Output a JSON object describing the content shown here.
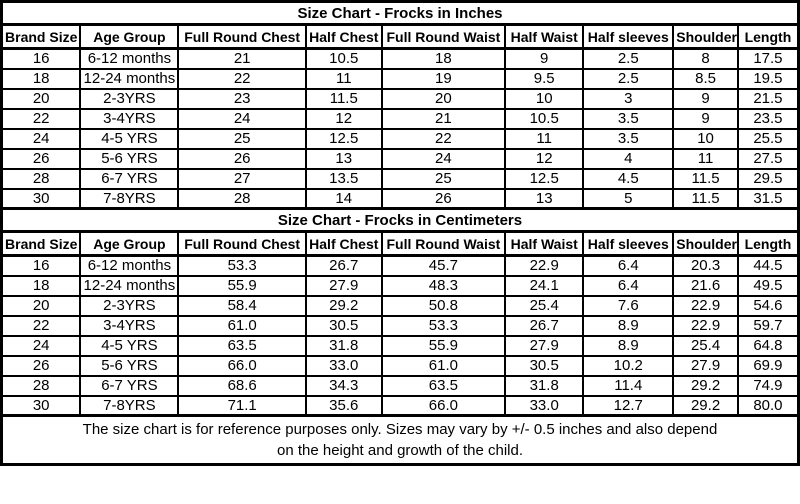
{
  "columns": [
    "Brand Size",
    "Age Group",
    "Full Round Chest",
    "Half Chest",
    "Full Round Waist",
    "Half Waist",
    "Half sleeves",
    "Shoulder",
    "Length"
  ],
  "footer": {
    "line1": "The size chart is for reference purposes only. Sizes may vary by +/- 0.5 inches and also depend",
    "line2": "on the height and growth of the child."
  },
  "border_color": "#000000",
  "background_color": "#ffffff",
  "chart_data": [
    {
      "type": "table",
      "title": "Size Chart - Frocks in Inches",
      "columns": [
        "Brand Size",
        "Age Group",
        "Full Round Chest",
        "Half Chest",
        "Full Round Waist",
        "Half Waist",
        "Half sleeves",
        "Shoulder",
        "Length"
      ],
      "rows": [
        [
          "16",
          "6-12 months",
          "21",
          "10.5",
          "18",
          "9",
          "2.5",
          "8",
          "17.5"
        ],
        [
          "18",
          "12-24 months",
          "22",
          "11",
          "19",
          "9.5",
          "2.5",
          "8.5",
          "19.5"
        ],
        [
          "20",
          "2-3YRS",
          "23",
          "11.5",
          "20",
          "10",
          "3",
          "9",
          "21.5"
        ],
        [
          "22",
          "3-4YRS",
          "24",
          "12",
          "21",
          "10.5",
          "3.5",
          "9",
          "23.5"
        ],
        [
          "24",
          "4-5 YRS",
          "25",
          "12.5",
          "22",
          "11",
          "3.5",
          "10",
          "25.5"
        ],
        [
          "26",
          "5-6 YRS",
          "26",
          "13",
          "24",
          "12",
          "4",
          "11",
          "27.5"
        ],
        [
          "28",
          "6-7 YRS",
          "27",
          "13.5",
          "25",
          "12.5",
          "4.5",
          "11.5",
          "29.5"
        ],
        [
          "30",
          "7-8YRS",
          "28",
          "14",
          "26",
          "13",
          "5",
          "11.5",
          "31.5"
        ]
      ]
    },
    {
      "type": "table",
      "title": "Size Chart - Frocks in Centimeters",
      "columns": [
        "Brand Size",
        "Age Group",
        "Full Round Chest",
        "Half Chest",
        "Full Round Waist",
        "Half Waist",
        "Half sleeves",
        "Shoulder",
        "Length"
      ],
      "rows": [
        [
          "16",
          "6-12 months",
          "53.3",
          "26.7",
          "45.7",
          "22.9",
          "6.4",
          "20.3",
          "44.5"
        ],
        [
          "18",
          "12-24 months",
          "55.9",
          "27.9",
          "48.3",
          "24.1",
          "6.4",
          "21.6",
          "49.5"
        ],
        [
          "20",
          "2-3YRS",
          "58.4",
          "29.2",
          "50.8",
          "25.4",
          "7.6",
          "22.9",
          "54.6"
        ],
        [
          "22",
          "3-4YRS",
          "61.0",
          "30.5",
          "53.3",
          "26.7",
          "8.9",
          "22.9",
          "59.7"
        ],
        [
          "24",
          "4-5 YRS",
          "63.5",
          "31.8",
          "55.9",
          "27.9",
          "8.9",
          "25.4",
          "64.8"
        ],
        [
          "26",
          "5-6 YRS",
          "66.0",
          "33.0",
          "61.0",
          "30.5",
          "10.2",
          "27.9",
          "69.9"
        ],
        [
          "28",
          "6-7 YRS",
          "68.6",
          "34.3",
          "63.5",
          "31.8",
          "11.4",
          "29.2",
          "74.9"
        ],
        [
          "30",
          "7-8YRS",
          "71.1",
          "35.6",
          "66.0",
          "33.0",
          "12.7",
          "29.2",
          "80.0"
        ]
      ]
    }
  ]
}
